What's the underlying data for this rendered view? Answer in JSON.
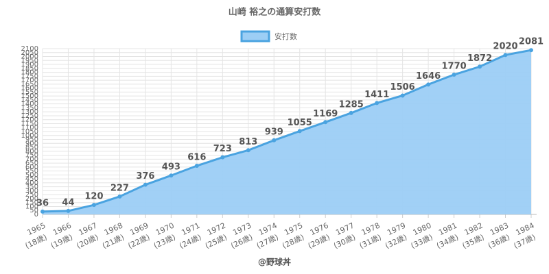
{
  "chart_data": {
    "type": "area",
    "title": "山崎 裕之の通算安打数",
    "categories": [
      "1965",
      "1966",
      "1967",
      "1968",
      "1969",
      "1970",
      "1971",
      "1972",
      "1973",
      "1974",
      "1975",
      "1976",
      "1977",
      "1978",
      "1979",
      "1980",
      "1981",
      "1982",
      "1983",
      "1984"
    ],
    "category_sublabels": [
      "(18歳)",
      "(19歳)",
      "(20歳)",
      "(21歳)",
      "(22歳)",
      "(23歳)",
      "(24歳)",
      "(25歳)",
      "(26歳)",
      "(27歳)",
      "(28歳)",
      "(29歳)",
      "(30歳)",
      "(31歳)",
      "(32歳)",
      "(33歳)",
      "(34歳)",
      "(35歳)",
      "(36歳)",
      "(37歳)"
    ],
    "series": [
      {
        "name": "安打数",
        "color": "#4aa3e0",
        "fill": "#9ccef5",
        "values": [
          36,
          44,
          120,
          227,
          376,
          493,
          616,
          723,
          813,
          939,
          1055,
          1169,
          1285,
          1411,
          1506,
          1646,
          1770,
          1872,
          2020,
          2081
        ]
      }
    ],
    "ylim": [
      0,
      2100
    ],
    "yticks": [
      0,
      50,
      100,
      150,
      200,
      250,
      300,
      350,
      400,
      450,
      500,
      550,
      600,
      650,
      700,
      750,
      800,
      850,
      900,
      950,
      1000,
      1050,
      1100,
      1150,
      1200,
      1250,
      1300,
      1350,
      1400,
      1450,
      1500,
      1550,
      1600,
      1650,
      1700,
      1750,
      1800,
      1850,
      1900,
      1950,
      2000,
      2050,
      2100
    ],
    "grid": true,
    "legend": "top",
    "footer": "@野球丼"
  }
}
